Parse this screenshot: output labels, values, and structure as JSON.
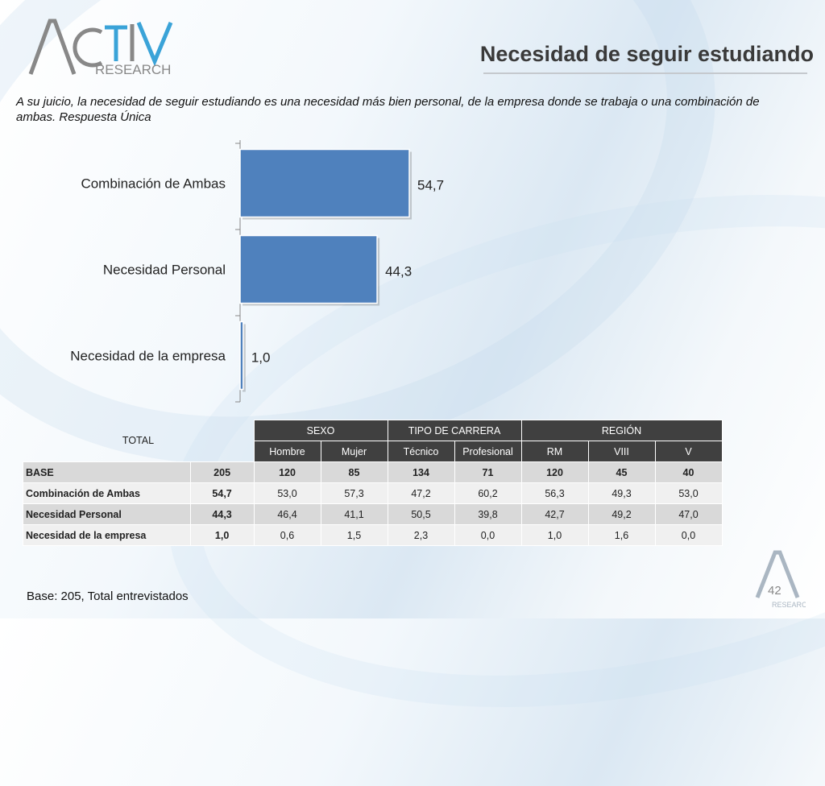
{
  "header": {
    "logo_text_main": "ACTIVA",
    "logo_text_sub": "RESEARCH",
    "title": "Necesidad de seguir estudiando"
  },
  "question": "A su juicio, la necesidad de seguir estudiando es una necesidad más bien personal, de la empresa donde se trabaja o una combinación de ambas. Respuesta Única",
  "chart_data": {
    "type": "bar",
    "orientation": "horizontal",
    "categories": [
      "Combinación de Ambas",
      "Necesidad Personal",
      "Necesidad de la empresa"
    ],
    "values": [
      54.7,
      44.3,
      1.0
    ],
    "value_labels": [
      "54,7",
      "44,3",
      "1,0"
    ],
    "title": "",
    "xlabel": "",
    "ylabel": "",
    "xlim": [
      0,
      100
    ],
    "grid": false,
    "legend": "none",
    "bar_color": "#4f81bd"
  },
  "table": {
    "total_header": "TOTAL",
    "groups": [
      {
        "label": "SEXO",
        "span": 2
      },
      {
        "label": "TIPO DE CARRERA",
        "span": 2
      },
      {
        "label": "REGIÓN",
        "span": 3
      }
    ],
    "subheaders": [
      "Hombre",
      "Mujer",
      "Técnico",
      "Profesional",
      "RM",
      "VIII",
      "V"
    ],
    "rows": [
      {
        "label": "BASE",
        "total": "205",
        "values": [
          "120",
          "85",
          "134",
          "71",
          "120",
          "45",
          "40"
        ]
      },
      {
        "label": "Combinación de Ambas",
        "total": "54,7",
        "values": [
          "53,0",
          "57,3",
          "47,2",
          "60,2",
          "56,3",
          "49,3",
          "53,0"
        ]
      },
      {
        "label": "Necesidad Personal",
        "total": "44,3",
        "values": [
          "46,4",
          "41,1",
          "50,5",
          "39,8",
          "42,7",
          "49,2",
          "47,0"
        ]
      },
      {
        "label": "Necesidad de la empresa",
        "total": "1,0",
        "values": [
          "0,6",
          "1,5",
          "2,3",
          "0,0",
          "1,0",
          "1,6",
          "0,0"
        ]
      }
    ]
  },
  "footer": {
    "base_note": "Base: 205, Total entrevistados",
    "page_number": "42",
    "logo_text": "RESEARCH"
  },
  "colors": {
    "bar": "#4f81bd",
    "table_header": "#404040",
    "row_odd": "#d9d9d9",
    "row_even": "#f0f0f0"
  }
}
